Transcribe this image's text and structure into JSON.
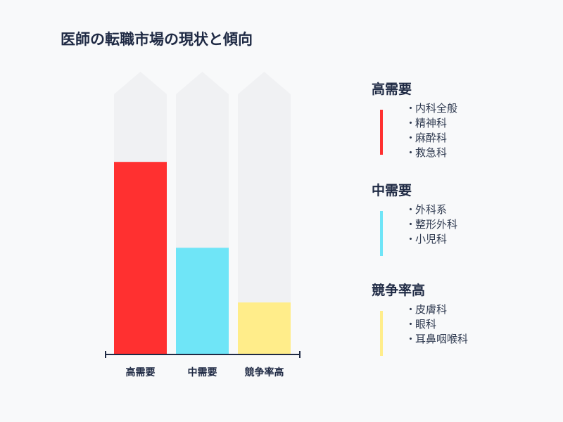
{
  "title": "医師の転職市場の現状と傾向",
  "chart_data": {
    "type": "bar",
    "categories": [
      "高需要",
      "中需要",
      "競争率高"
    ],
    "values": [
      0.74,
      0.41,
      0.2
    ],
    "ylim": [
      0,
      1
    ],
    "colors": [
      "#ff3030",
      "#6fe5f7",
      "#ffed8a"
    ],
    "track_color": "#f0f1f3",
    "xlabel": "",
    "ylabel": ""
  },
  "legend": [
    {
      "heading": "高需要",
      "color": "#ff3030",
      "items": [
        "内科全般",
        "精神科",
        "麻酔科",
        "救急科"
      ]
    },
    {
      "heading": "中需要",
      "color": "#6fe5f7",
      "items": [
        "外科系",
        "整形外科",
        "小児科"
      ]
    },
    {
      "heading": "競争率高",
      "color": "#ffed8a",
      "items": [
        "皮膚科",
        "眼科",
        "耳鼻咽喉科"
      ]
    }
  ],
  "bullet": "・"
}
